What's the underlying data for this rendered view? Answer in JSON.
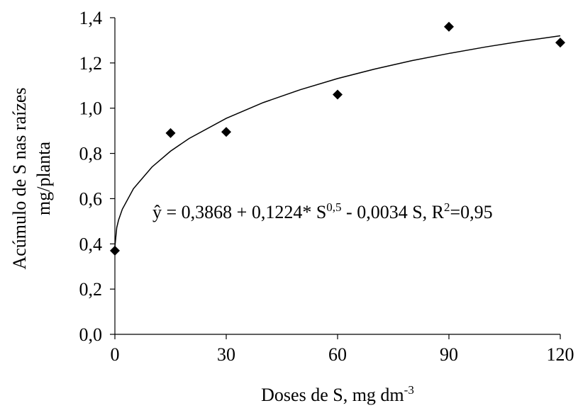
{
  "chart_data": {
    "type": "scatter",
    "xlabel": [
      "Doses de S, mg dm",
      "-3"
    ],
    "ylabel": [
      "Acúmulo de S nas raízes",
      "mg/planta"
    ],
    "annotation": [
      "ŷ = 0,3868 + 0,1224* S",
      "0,5",
      " - 0,0034 S, R",
      "2",
      "=0,95"
    ],
    "xlim": [
      0,
      120
    ],
    "ylim": [
      0,
      1.4
    ],
    "xticks": [
      0,
      30,
      60,
      90,
      120
    ],
    "yticks": [
      {
        "value": 0,
        "label": "0,0"
      },
      {
        "value": 0.2,
        "label": "0,2"
      },
      {
        "value": 0.4,
        "label": "0,4"
      },
      {
        "value": 0.6,
        "label": "0,6"
      },
      {
        "value": 0.8,
        "label": "0,8"
      },
      {
        "value": 1.0,
        "label": "1,0"
      },
      {
        "value": 1.2,
        "label": "1,2"
      },
      {
        "value": 1.4,
        "label": "1,4"
      }
    ],
    "series": [
      {
        "type": "scatter",
        "color": "#000000",
        "x": [
          0,
          15,
          30,
          60,
          90,
          120
        ],
        "values": [
          0.37,
          0.89,
          0.895,
          1.06,
          1.36,
          1.29
        ]
      },
      {
        "type": "line",
        "color": "#000000",
        "x": [
          0,
          0.5,
          1,
          2,
          5,
          10,
          15,
          20,
          30,
          40,
          50,
          60,
          70,
          80,
          90,
          100,
          110,
          120
        ],
        "values": [
          0.387,
          0.472,
          0.506,
          0.553,
          0.644,
          0.74,
          0.81,
          0.866,
          0.955,
          1.025,
          1.082,
          1.131,
          1.173,
          1.21,
          1.242,
          1.271,
          1.297,
          1.32
        ]
      }
    ]
  }
}
